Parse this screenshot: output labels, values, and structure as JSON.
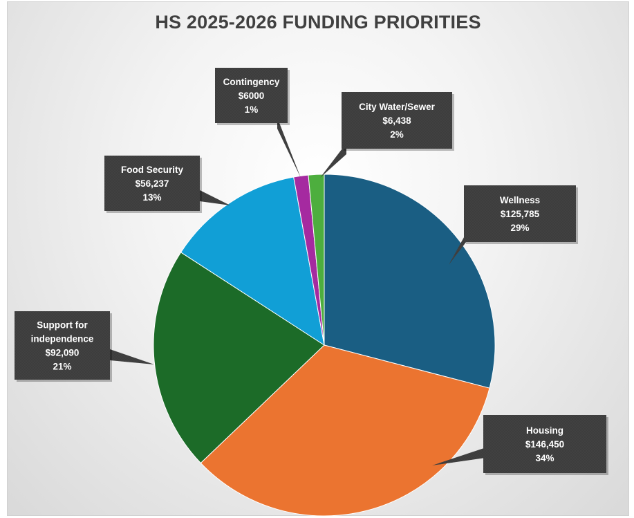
{
  "chart_data": {
    "type": "pie",
    "title": "HS 2025-2026 FUNDING PRIORITIES",
    "slices": [
      {
        "name": "Wellness",
        "value": 125785,
        "value_label": "$125,785",
        "percent_label": "29%",
        "color": "#1a5e83"
      },
      {
        "name": "Housing",
        "value": 146450,
        "value_label": "$146,450",
        "percent_label": "34%",
        "color": "#eb7430"
      },
      {
        "name": "Support for independence",
        "value": 92090,
        "value_label": "$92,090",
        "percent_label": "21%",
        "color": "#1c6b28"
      },
      {
        "name": "Food Security",
        "value": 56237,
        "value_label": "$56,237",
        "percent_label": "13%",
        "color": "#119fd6"
      },
      {
        "name": "Contingency",
        "value": 6000,
        "value_label": "$6000",
        "percent_label": "1%",
        "color": "#a52aa0"
      },
      {
        "name": "City Water/Sewer",
        "value": 6438,
        "value_label": "$6,438",
        "percent_label": "2%",
        "color": "#4dae3e"
      }
    ],
    "label_style": "callout"
  }
}
